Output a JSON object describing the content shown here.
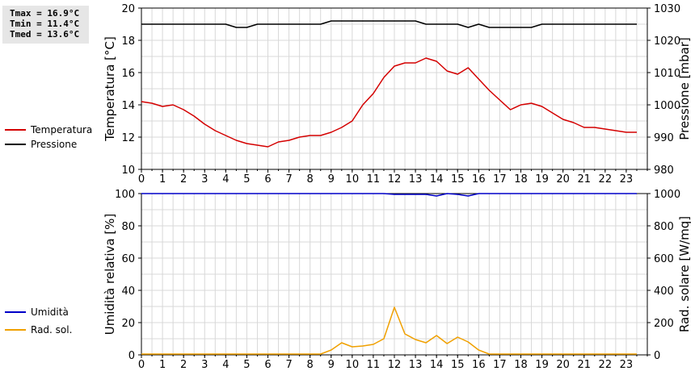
{
  "stats": {
    "tmax": "Tmax = 16.9°C",
    "tmin": "Tmin = 11.4°C",
    "tmed": "Tmed = 13.6°C"
  },
  "legend_top": {
    "temp": "Temperatura",
    "press": "Pressione"
  },
  "legend_bottom": {
    "hum": "Umidità",
    "rad": "Rad. sol."
  },
  "colors": {
    "temperature": "#d40000",
    "pressure": "#000000",
    "humidity": "#0000c8",
    "radiation": "#f0a000",
    "grid": "#d8d8d8"
  },
  "chart_data": [
    {
      "type": "line",
      "x_ticks": [
        "0",
        "1",
        "2",
        "3",
        "4",
        "5",
        "6",
        "7",
        "8",
        "9",
        "10",
        "11",
        "12",
        "13",
        "14",
        "15",
        "16",
        "17",
        "18",
        "19",
        "20",
        "21",
        "22",
        "23"
      ],
      "xlim": [
        0,
        24
      ],
      "ylabel": "Temperatura [°C]",
      "ylim": [
        10,
        20
      ],
      "y_ticks": [
        "10",
        "12",
        "14",
        "16",
        "18",
        "20"
      ],
      "ylabel_right": "Pressione [mbar]",
      "ylim_right": [
        980,
        1030
      ],
      "y_ticks_right": [
        "980",
        "990",
        "1000",
        "1010",
        "1020",
        "1030"
      ],
      "grid": true,
      "series": [
        {
          "name": "Temperatura",
          "axis": "left",
          "x": [
            0,
            0.5,
            1,
            1.5,
            2,
            2.5,
            3,
            3.5,
            4,
            4.5,
            5,
            5.5,
            6,
            6.5,
            7,
            7.5,
            8,
            8.5,
            9,
            9.5,
            10,
            10.5,
            11,
            11.5,
            12,
            12.5,
            13,
            13.5,
            14,
            14.5,
            15,
            15.5,
            16,
            16.5,
            17,
            17.5,
            18,
            18.5,
            19,
            19.5,
            20,
            20.5,
            21,
            21.5,
            22,
            22.5,
            23,
            23.5
          ],
          "values": [
            14.2,
            14.1,
            13.9,
            14.0,
            13.7,
            13.3,
            12.8,
            12.4,
            12.1,
            11.8,
            11.6,
            11.5,
            11.4,
            11.7,
            11.8,
            12.0,
            12.1,
            12.1,
            12.3,
            12.6,
            13.0,
            14.0,
            14.7,
            15.7,
            16.4,
            16.6,
            16.6,
            16.9,
            16.7,
            16.1,
            15.9,
            16.3,
            15.6,
            14.9,
            14.3,
            13.7,
            14.0,
            14.1,
            13.9,
            13.5,
            13.1,
            12.9,
            12.6,
            12.6,
            12.5,
            12.4,
            12.3,
            12.3
          ]
        },
        {
          "name": "Pressione",
          "axis": "right",
          "x": [
            0,
            0.5,
            1,
            1.5,
            2,
            2.5,
            3,
            3.5,
            4,
            4.5,
            5,
            5.5,
            6,
            6.5,
            7,
            7.5,
            8,
            8.5,
            9,
            9.5,
            10,
            10.5,
            11,
            11.5,
            12,
            12.5,
            13,
            13.5,
            14,
            14.5,
            15,
            15.5,
            16,
            16.5,
            17,
            17.5,
            18,
            18.5,
            19,
            19.5,
            20,
            20.5,
            21,
            21.5,
            22,
            22.5,
            23,
            23.5
          ],
          "values": [
            1025,
            1025,
            1025,
            1025,
            1025,
            1025,
            1025,
            1025,
            1025,
            1024,
            1024,
            1025,
            1025,
            1025,
            1025,
            1025,
            1025,
            1025,
            1026,
            1026,
            1026,
            1026,
            1026,
            1026,
            1026,
            1026,
            1026,
            1025,
            1025,
            1025,
            1025,
            1024,
            1025,
            1024,
            1024,
            1024,
            1024,
            1024,
            1025,
            1025,
            1025,
            1025,
            1025,
            1025,
            1025,
            1025,
            1025,
            1025
          ]
        }
      ]
    },
    {
      "type": "line",
      "x_ticks": [
        "0",
        "1",
        "2",
        "3",
        "4",
        "5",
        "6",
        "7",
        "8",
        "9",
        "10",
        "11",
        "12",
        "13",
        "14",
        "15",
        "16",
        "17",
        "18",
        "19",
        "20",
        "21",
        "22",
        "23"
      ],
      "xlim": [
        0,
        24
      ],
      "ylabel": "Umidità relativa [%]",
      "ylim": [
        0,
        100
      ],
      "y_ticks": [
        "0",
        "20",
        "40",
        "60",
        "80",
        "100"
      ],
      "ylabel_right": "Rad. solare [W/mq]",
      "ylim_right": [
        0,
        1000
      ],
      "y_ticks_right": [
        "0",
        "200",
        "400",
        "600",
        "800",
        "1000"
      ],
      "grid": true,
      "series": [
        {
          "name": "Umidità",
          "axis": "left",
          "x": [
            0,
            0.5,
            1,
            1.5,
            2,
            2.5,
            3,
            3.5,
            4,
            4.5,
            5,
            5.5,
            6,
            6.5,
            7,
            7.5,
            8,
            8.5,
            9,
            9.5,
            10,
            10.5,
            11,
            11.5,
            12,
            12.5,
            13,
            13.5,
            14,
            14.5,
            15,
            15.5,
            16,
            16.5,
            17,
            17.5,
            18,
            18.5,
            19,
            19.5,
            20,
            20.5,
            21,
            21.5,
            22,
            22.5,
            23,
            23.5
          ],
          "values": [
            100,
            100,
            100,
            100,
            100,
            100,
            100,
            100,
            100,
            100,
            100,
            100,
            100,
            100,
            100,
            100,
            100,
            100,
            100,
            100,
            100,
            100,
            100,
            100,
            99.5,
            99.5,
            99.5,
            99.5,
            98.5,
            100,
            99.5,
            98.5,
            100,
            100,
            100,
            100,
            100,
            100,
            100,
            100,
            100,
            100,
            100,
            100,
            100,
            100,
            100,
            100
          ]
        },
        {
          "name": "Rad. sol.",
          "axis": "right",
          "x": [
            0,
            0.5,
            1,
            1.5,
            2,
            2.5,
            3,
            3.5,
            4,
            4.5,
            5,
            5.5,
            6,
            6.5,
            7,
            7.5,
            8,
            8.5,
            9,
            9.5,
            10,
            10.5,
            11,
            11.5,
            12,
            12.5,
            13,
            13.5,
            14,
            14.5,
            15,
            15.5,
            16,
            16.5,
            17,
            17.5,
            18,
            18.5,
            19,
            19.5,
            20,
            20.5,
            21,
            21.5,
            22,
            22.5,
            23,
            23.5
          ],
          "values": [
            5,
            5,
            5,
            5,
            5,
            5,
            5,
            5,
            5,
            5,
            5,
            5,
            5,
            5,
            5,
            5,
            5,
            5,
            30,
            75,
            50,
            55,
            65,
            100,
            295,
            130,
            95,
            75,
            120,
            70,
            110,
            80,
            30,
            5,
            5,
            5,
            5,
            5,
            5,
            5,
            5,
            5,
            5,
            5,
            5,
            5,
            5,
            5
          ]
        }
      ]
    }
  ]
}
